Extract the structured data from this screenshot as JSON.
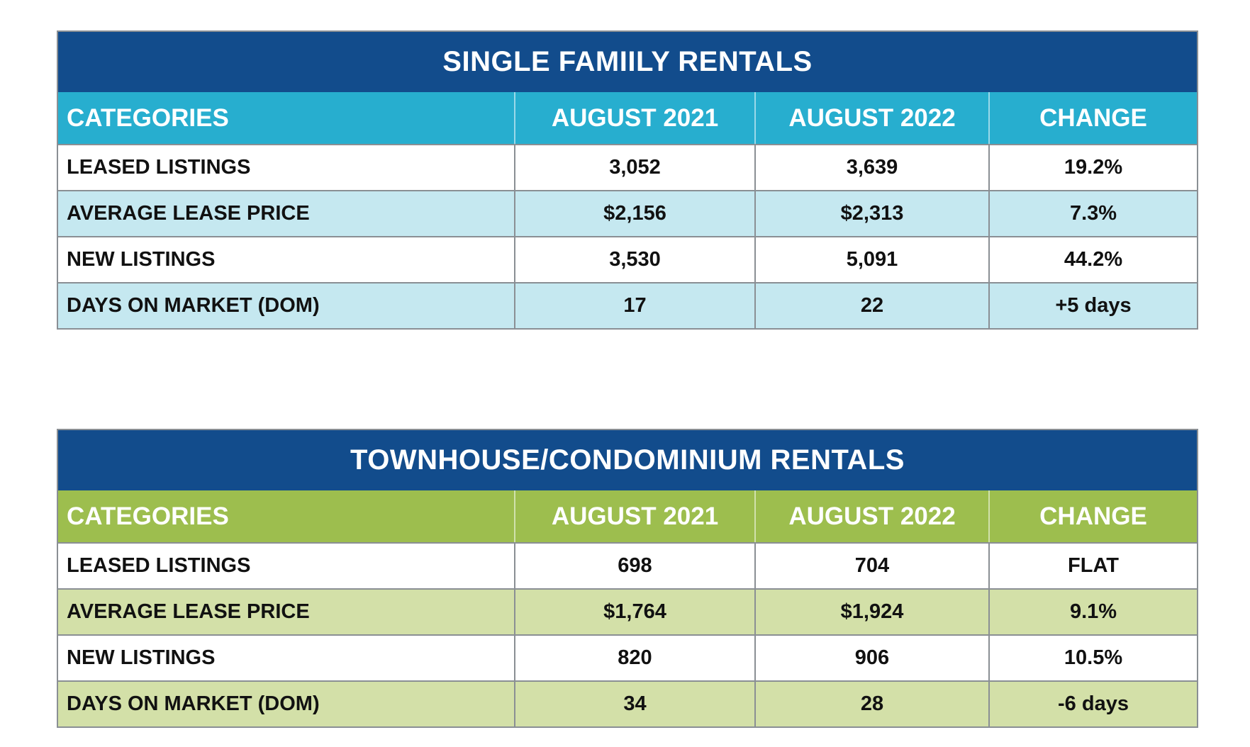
{
  "tables": [
    {
      "title": "SINGLE FAMIILY RENTALS",
      "header": [
        "CATEGORIES",
        "AUGUST 2021",
        "AUGUST 2022",
        "CHANGE"
      ],
      "rows": [
        [
          "LEASED LISTINGS",
          "3,052",
          "3,639",
          "19.2%"
        ],
        [
          "AVERAGE LEASE PRICE",
          "$2,156",
          "$2,313",
          "7.3%"
        ],
        [
          "NEW LISTINGS",
          "3,530",
          "5,091",
          "44.2%"
        ],
        [
          "DAYS ON MARKET (DOM)",
          "17",
          "22",
          "+5 days"
        ]
      ]
    },
    {
      "title": "TOWNHOUSE/CONDOMINIUM RENTALS",
      "header": [
        "CATEGORIES",
        "AUGUST 2021",
        "AUGUST 2022",
        "CHANGE"
      ],
      "rows": [
        [
          "LEASED LISTINGS",
          "698",
          "704",
          "FLAT"
        ],
        [
          "AVERAGE LEASE PRICE",
          "$1,764",
          "$1,924",
          "9.1%"
        ],
        [
          "NEW LISTINGS",
          "820",
          "906",
          "10.5%"
        ],
        [
          "DAYS ON MARKET (DOM)",
          "34",
          "28",
          "-6 days"
        ]
      ]
    }
  ],
  "colors": {
    "title_bg": "#124c8c",
    "single_family_header": "#27aecf",
    "single_family_alt_row": "#c5e8f0",
    "townhouse_header": "#9dbe4e",
    "townhouse_alt_row": "#d3e0a8"
  }
}
